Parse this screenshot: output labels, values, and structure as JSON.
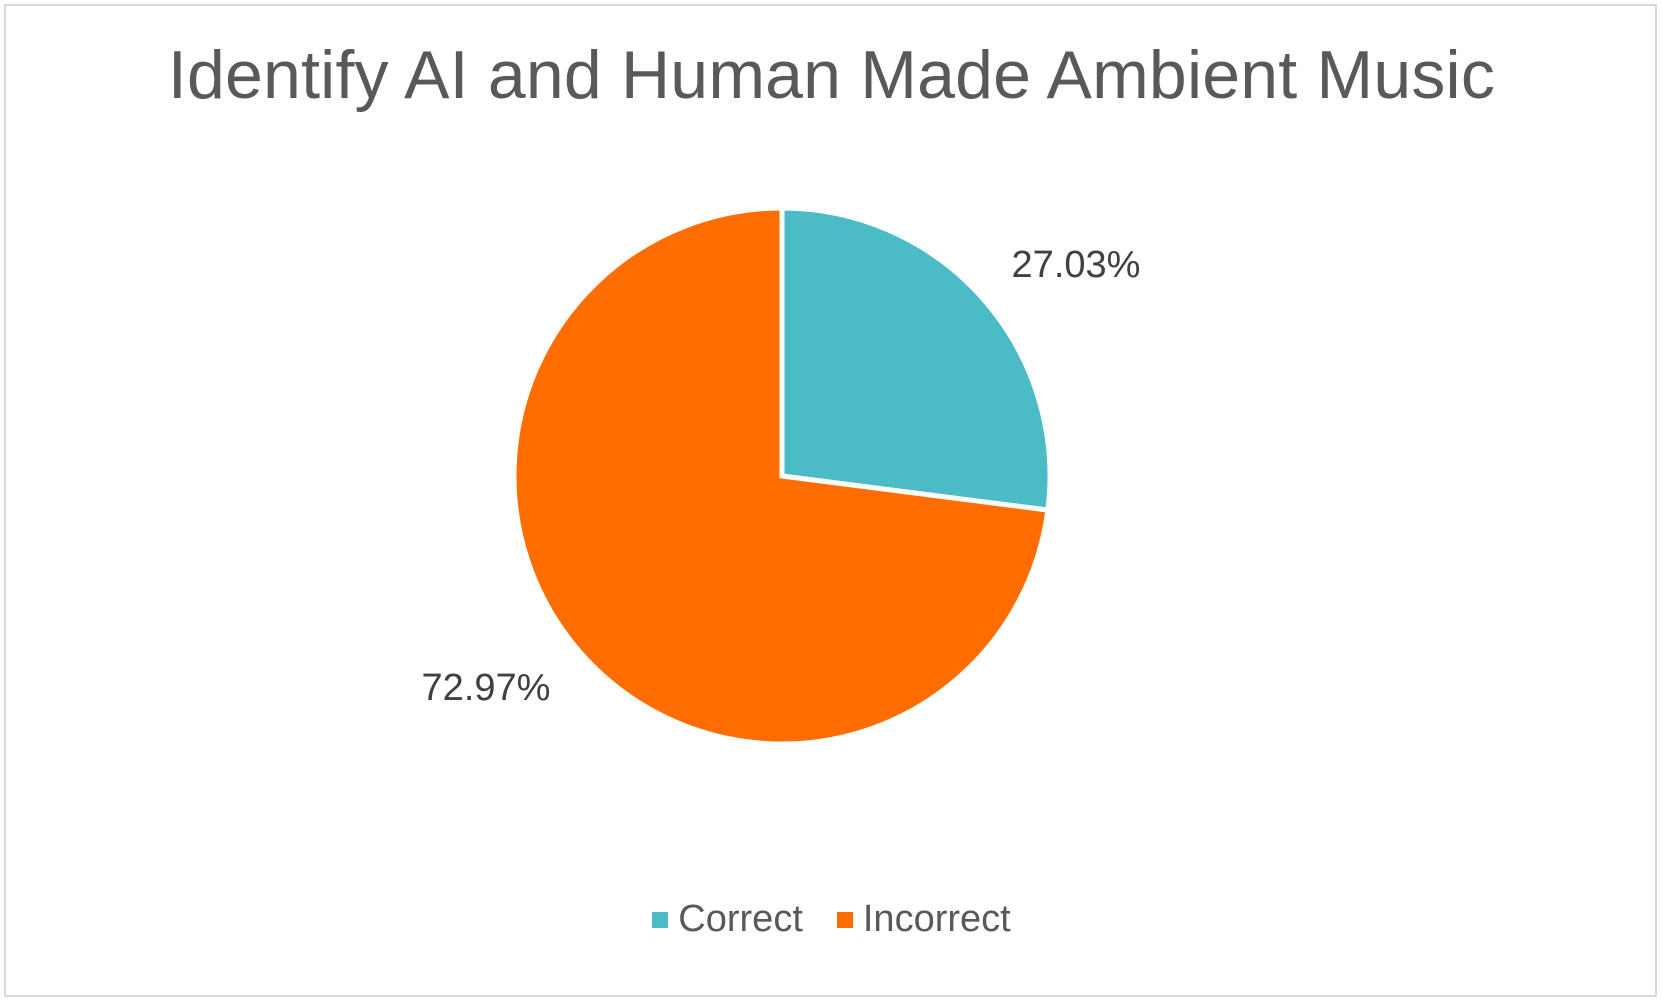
{
  "chart_data": {
    "type": "pie",
    "title": "Identify AI and Human Made Ambient Music",
    "categories": [
      "Correct",
      "Incorrect"
    ],
    "values": [
      27.03,
      72.97
    ],
    "data_labels": [
      "27.03%",
      "72.97%"
    ],
    "colors": [
      "#4BBBC5",
      "#FF6D00"
    ],
    "legend_position": "bottom",
    "start_angle": "12 o'clock, clockwise"
  }
}
